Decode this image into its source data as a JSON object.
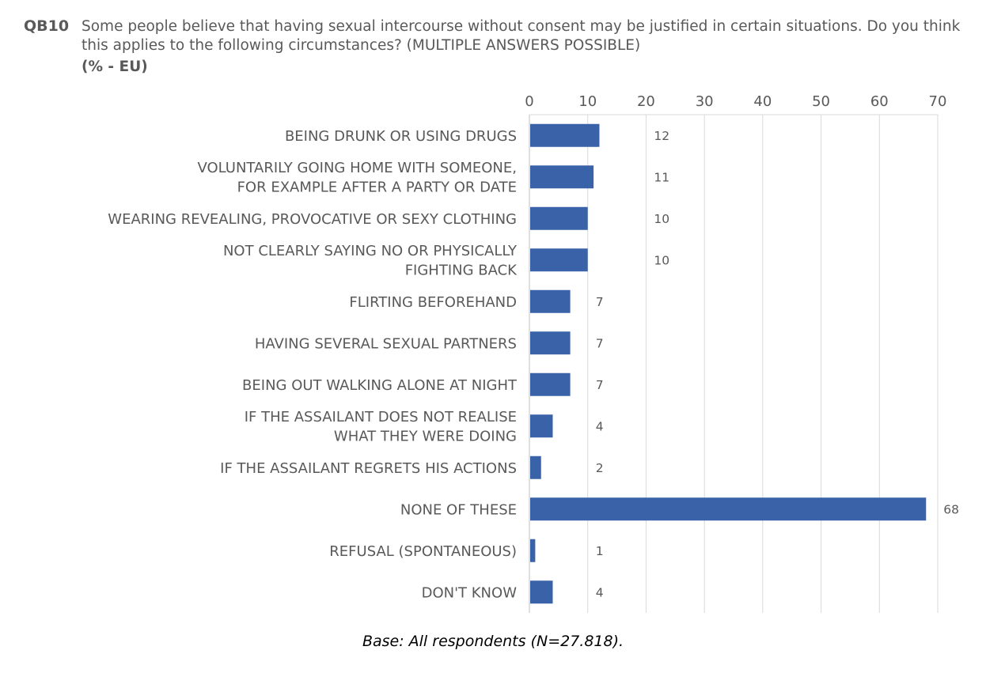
{
  "question": {
    "code": "QB10",
    "text": "Some people believe that having sexual intercourse without consent may be justified in certain situations. Do you think this applies to the following circumstances? (MULTIPLE ANSWERS POSSIBLE)",
    "unit": "(% - EU)"
  },
  "chart_data": {
    "type": "bar",
    "orientation": "horizontal",
    "categories": [
      [
        "BEING DRUNK OR USING DRUGS"
      ],
      [
        "VOLUNTARILY GOING HOME WITH SOMEONE,",
        "FOR EXAMPLE AFTER A PARTY OR DATE"
      ],
      [
        "WEARING REVEALING, PROVOCATIVE OR SEXY CLOTHING"
      ],
      [
        "NOT CLEARLY SAYING NO OR PHYSICALLY",
        "FIGHTING BACK"
      ],
      [
        "FLIRTING BEFOREHAND"
      ],
      [
        "HAVING SEVERAL SEXUAL PARTNERS"
      ],
      [
        "BEING OUT WALKING ALONE AT NIGHT"
      ],
      [
        "IF THE ASSAILANT DOES NOT REALISE",
        "WHAT THEY WERE DOING"
      ],
      [
        "IF THE ASSAILANT REGRETS HIS ACTIONS"
      ],
      [
        "NONE OF THESE"
      ],
      [
        "REFUSAL (SPONTANEOUS)"
      ],
      [
        "DON'T KNOW"
      ]
    ],
    "values": [
      12,
      11,
      10,
      10,
      7,
      7,
      7,
      4,
      2,
      68,
      1,
      4
    ],
    "xlim": [
      0,
      70
    ],
    "xticks": [
      0,
      10,
      20,
      30,
      40,
      50,
      60,
      70
    ],
    "axis_position": "top",
    "grid": true,
    "bar_color": "#3A62A8",
    "grid_color": "#D9D9D9"
  },
  "footnote": "Base: All respondents (N=27.818)."
}
